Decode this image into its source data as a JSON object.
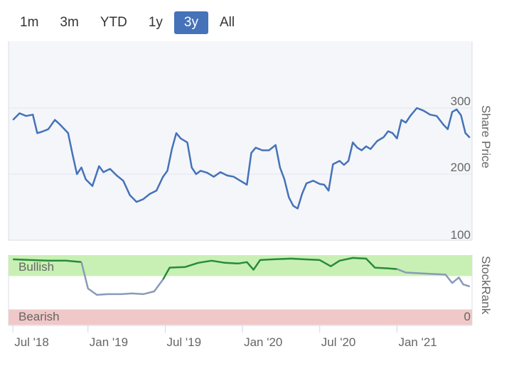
{
  "range_selector": {
    "buttons": [
      "1m",
      "3m",
      "YTD",
      "1y",
      "3y",
      "All"
    ],
    "selected": "3y"
  },
  "colors": {
    "price_line": "#4572b8",
    "bullish_zone": "#c8f0b4",
    "bearish_zone": "#f0c8c8",
    "rank_line_bullish": "#2a8a3a",
    "rank_line_neutral": "#8a9ab8",
    "selected_button": "#4572b8"
  },
  "chart_data": {
    "type": "line",
    "price_panel": {
      "ylabel": "Share Price",
      "y_ticks": [
        "300",
        "200",
        "100"
      ],
      "ylim": [
        100,
        300
      ],
      "series": [
        {
          "values": [
            [
              0,
              282
            ],
            [
              0.3,
              292
            ],
            [
              0.6,
              288
            ],
            [
              0.9,
              290
            ],
            [
              1.1,
              262
            ],
            [
              1.3,
              264
            ],
            [
              1.6,
              268
            ],
            [
              1.9,
              282
            ],
            [
              2.1,
              276
            ],
            [
              2.5,
              262
            ],
            [
              2.7,
              230
            ],
            [
              2.9,
              200
            ],
            [
              3.1,
              210
            ],
            [
              3.3,
              192
            ],
            [
              3.6,
              182
            ],
            [
              3.9,
              212
            ],
            [
              4.1,
              203
            ],
            [
              4.4,
              208
            ],
            [
              4.7,
              198
            ],
            [
              5.0,
              190
            ],
            [
              5.3,
              168
            ],
            [
              5.6,
              158
            ],
            [
              5.9,
              162
            ],
            [
              6.2,
              170
            ],
            [
              6.5,
              175
            ],
            [
              6.8,
              196
            ],
            [
              7.0,
              205
            ],
            [
              7.2,
              238
            ],
            [
              7.4,
              262
            ],
            [
              7.6,
              254
            ],
            [
              7.9,
              248
            ],
            [
              8.1,
              210
            ],
            [
              8.3,
              200
            ],
            [
              8.5,
              205
            ],
            [
              8.8,
              202
            ],
            [
              9.1,
              196
            ],
            [
              9.4,
              203
            ],
            [
              9.7,
              198
            ],
            [
              10.0,
              196
            ],
            [
              10.3,
              190
            ],
            [
              10.6,
              184
            ],
            [
              10.8,
              232
            ],
            [
              11.0,
              240
            ],
            [
              11.3,
              236
            ],
            [
              11.6,
              236
            ],
            [
              11.9,
              244
            ],
            [
              12.1,
              210
            ],
            [
              12.3,
              192
            ],
            [
              12.5,
              165
            ],
            [
              12.7,
              152
            ],
            [
              12.9,
              148
            ],
            [
              13.1,
              170
            ],
            [
              13.3,
              186
            ],
            [
              13.6,
              190
            ],
            [
              13.9,
              185
            ],
            [
              14.1,
              184
            ],
            [
              14.3,
              175
            ],
            [
              14.5,
              215
            ],
            [
              14.8,
              220
            ],
            [
              15.0,
              214
            ],
            [
              15.2,
              220
            ],
            [
              15.4,
              248
            ],
            [
              15.6,
              240
            ],
            [
              15.8,
              236
            ],
            [
              16.0,
              242
            ],
            [
              16.2,
              238
            ],
            [
              16.5,
              250
            ],
            [
              16.8,
              256
            ],
            [
              17.0,
              265
            ],
            [
              17.2,
              262
            ],
            [
              17.4,
              254
            ],
            [
              17.6,
              282
            ],
            [
              17.8,
              278
            ],
            [
              18.0,
              288
            ],
            [
              18.3,
              300
            ],
            [
              18.6,
              296
            ],
            [
              18.9,
              290
            ],
            [
              19.2,
              288
            ],
            [
              19.5,
              275
            ],
            [
              19.7,
              268
            ],
            [
              19.9,
              294
            ],
            [
              20.1,
              298
            ],
            [
              20.3,
              289
            ],
            [
              20.5,
              262
            ],
            [
              20.7,
              255
            ]
          ]
        }
      ]
    },
    "stockrank_panel": {
      "ylabel": "StockRank",
      "y_ticks": [
        "0"
      ],
      "zones": [
        {
          "label": "Bullish"
        },
        {
          "label": "Bearish"
        }
      ],
      "ylim": [
        0,
        100
      ],
      "series": [
        {
          "values": [
            [
              0,
              94
            ],
            [
              0.8,
              93
            ],
            [
              1.6,
              92
            ],
            [
              2.4,
              92
            ],
            [
              3.1,
              90
            ],
            [
              3.4,
              52
            ],
            [
              3.8,
              43
            ],
            [
              4.3,
              44
            ],
            [
              4.9,
              44
            ],
            [
              5.4,
              45
            ],
            [
              5.9,
              44
            ],
            [
              6.4,
              48
            ],
            [
              6.8,
              65
            ],
            [
              7.1,
              82
            ],
            [
              7.8,
              83
            ],
            [
              8.4,
              89
            ],
            [
              9.0,
              92
            ],
            [
              9.6,
              89
            ],
            [
              10.2,
              88
            ],
            [
              10.6,
              90
            ],
            [
              10.9,
              79
            ],
            [
              11.2,
              93
            ],
            [
              11.8,
              94
            ],
            [
              12.6,
              95
            ],
            [
              13.2,
              94
            ],
            [
              13.9,
              93
            ],
            [
              14.4,
              84
            ],
            [
              14.8,
              92
            ],
            [
              15.4,
              96
            ],
            [
              16.0,
              95
            ],
            [
              16.4,
              82
            ],
            [
              17.0,
              81
            ],
            [
              17.4,
              80
            ],
            [
              17.8,
              75
            ],
            [
              18.4,
              74
            ],
            [
              19.0,
              73
            ],
            [
              19.6,
              72
            ],
            [
              19.9,
              60
            ],
            [
              20.2,
              68
            ],
            [
              20.4,
              58
            ],
            [
              20.7,
              55
            ]
          ],
          "bullish_until_x": 17.7
        }
      ]
    },
    "x_axis": {
      "tick_labels": [
        "Jul '18",
        "Jan '19",
        "Jul '19",
        "Jan '20",
        "Jul '20",
        "Jan '21"
      ],
      "tick_positions": [
        0,
        3.4,
        6.9,
        10.4,
        13.9,
        17.4
      ],
      "xlim": [
        -0.2,
        20.8
      ]
    }
  }
}
